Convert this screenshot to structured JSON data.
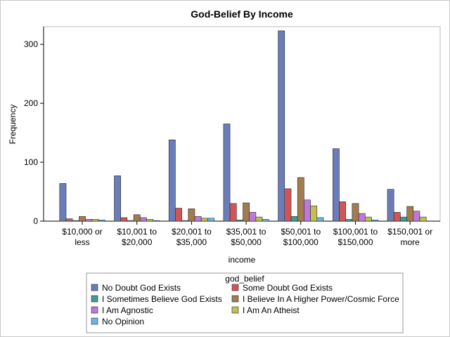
{
  "chart_data": {
    "type": "bar",
    "title": "God-Belief By Income",
    "xlabel": "income",
    "ylabel": "Frequency",
    "ylim": [
      0,
      330
    ],
    "yticks": [
      0,
      100,
      200,
      300
    ],
    "grid": false,
    "legend_title": "god_belief",
    "legend_position": "bottom",
    "categories": [
      [
        "$10,000 or",
        "less"
      ],
      [
        "$10,001 to",
        "$20,000"
      ],
      [
        "$20,001 to",
        "$35,000"
      ],
      [
        "$35,001 to",
        "$50,000"
      ],
      [
        "$50,001 to",
        "$100,000"
      ],
      [
        "$100,001 to",
        "$150,000"
      ],
      [
        "$150,001 or",
        "more"
      ]
    ],
    "series": [
      {
        "name": "No Doubt God Exists",
        "color": "#6a7db8",
        "values": [
          64,
          77,
          138,
          165,
          323,
          123,
          54
        ]
      },
      {
        "name": "Some Doubt God Exists",
        "color": "#d25556",
        "values": [
          4,
          6,
          22,
          30,
          55,
          33,
          15
        ]
      },
      {
        "name": "I Sometimes Believe God Exists",
        "color": "#3f9c93",
        "values": [
          1,
          1,
          1,
          2,
          8,
          3,
          7
        ]
      },
      {
        "name": "I Believe In A Higher Power/Cosmic Force",
        "color": "#a27b4f",
        "values": [
          8,
          11,
          21,
          31,
          74,
          30,
          25
        ]
      },
      {
        "name": "I Am Agnostic",
        "color": "#bd78d8",
        "values": [
          3,
          6,
          8,
          15,
          36,
          13,
          17
        ]
      },
      {
        "name": "I Am An Atheist",
        "color": "#bcc14f",
        "values": [
          3,
          3,
          5,
          7,
          26,
          7,
          7
        ]
      },
      {
        "name": "No Opinion",
        "color": "#6fb4e8",
        "values": [
          2,
          1,
          5,
          3,
          6,
          2,
          0
        ]
      }
    ]
  }
}
